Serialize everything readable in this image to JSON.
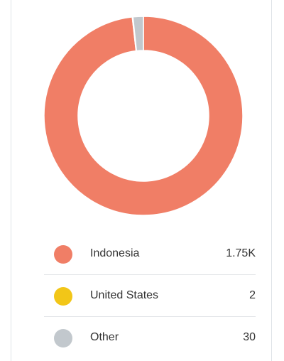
{
  "chart_data": {
    "type": "pie",
    "style": "donut",
    "categories": [
      "Indonesia",
      "United States",
      "Other"
    ],
    "values": [
      1750,
      2,
      30
    ],
    "display_values": [
      "1.75K",
      "2",
      "30"
    ],
    "colors": [
      "#f07e66",
      "#f2c618",
      "#c2c8cd"
    ]
  },
  "legend": {
    "items": [
      {
        "label": "Indonesia",
        "value": "1.75K",
        "color": "#f07e66"
      },
      {
        "label": "United States",
        "value": "2",
        "color": "#f2c618"
      },
      {
        "label": "Other",
        "value": "30",
        "color": "#c2c8cd"
      }
    ]
  }
}
